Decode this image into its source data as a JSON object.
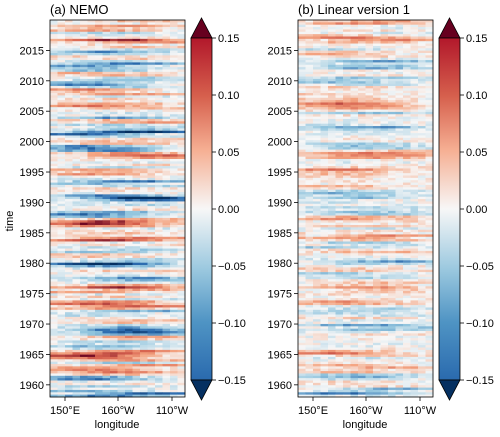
{
  "chart_data": [
    {
      "type": "heatmap",
      "title": "(a) NEMO",
      "xlabel": "longitude",
      "ylabel": "time",
      "x_ticks": [
        "150°E",
        "160°W",
        "110°W"
      ],
      "y_ticks": [
        1960,
        1965,
        1970,
        1975,
        1980,
        1985,
        1990,
        1995,
        2000,
        2005,
        2010,
        2015
      ],
      "ylim": [
        1958,
        2020
      ],
      "colorbar": {
        "ticks": [
          "0.15",
          "0.10",
          "0.05",
          "0.00",
          "−0.05",
          "−0.10",
          "−0.15"
        ],
        "range": [
          -0.15,
          0.15
        ],
        "extend": "both",
        "cmap": "RdBu_r"
      }
    },
    {
      "type": "heatmap",
      "title": "(b) Linear version 1",
      "xlabel": "longitude",
      "ylabel": "",
      "x_ticks": [
        "150°E",
        "160°W",
        "110°W"
      ],
      "y_ticks": [
        1960,
        1965,
        1970,
        1975,
        1980,
        1985,
        1990,
        1995,
        2000,
        2005,
        2010,
        2015
      ],
      "ylim": [
        1958,
        2020
      ],
      "colorbar": {
        "ticks": [
          "0.15",
          "0.10",
          "0.05",
          "0.00",
          "−0.05",
          "−0.10",
          "−0.15"
        ],
        "range": [
          -0.15,
          0.15
        ],
        "extend": "both",
        "cmap": "RdBu_r"
      }
    }
  ]
}
